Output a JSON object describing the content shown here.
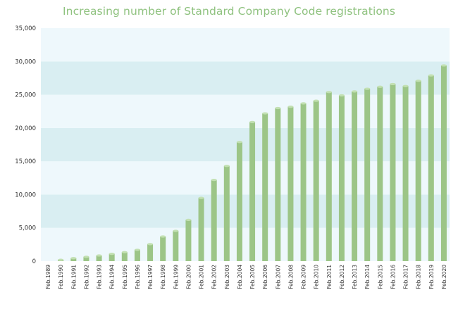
{
  "chart_data": {
    "type": "bar",
    "title": "Increasing number of Standard Company Code registrations",
    "xlabel": "",
    "ylabel": "",
    "ylim": [
      0,
      35000
    ],
    "yticks": [
      0,
      5000,
      10000,
      15000,
      20000,
      25000,
      30000,
      35000
    ],
    "ytick_labels": [
      "0",
      "5,000",
      "10,000",
      "15,000",
      "20,000",
      "25,000",
      "30,000",
      "35,000"
    ],
    "grid": "alternating horizontal bands",
    "legend": "none",
    "categories": [
      "Feb.1989",
      "Feb.1990",
      "Feb.1991",
      "Feb.1992",
      "Feb.1993",
      "Feb.1994",
      "Feb.1995",
      "Feb.1996",
      "Feb.1997",
      "Feb.1998",
      "Feb.1999",
      "Feb.2000",
      "Feb.2001",
      "Feb.2002",
      "Feb.2003",
      "Feb.2004",
      "Feb.2005",
      "Feb.2006",
      "Feb.2007",
      "Feb.2008",
      "Feb.2009",
      "Feb.2010",
      "Feb.2011",
      "Feb.2012",
      "Feb.2013",
      "Feb.2014",
      "Feb.2015",
      "Feb.2016",
      "Feb.2017",
      "Feb.2018",
      "Feb.2019",
      "Feb.2020"
    ],
    "values": [
      0,
      200,
      450,
      650,
      850,
      1100,
      1350,
      1700,
      2550,
      3700,
      4550,
      6200,
      9500,
      12200,
      14300,
      17900,
      20900,
      22200,
      23000,
      23200,
      23700,
      24100,
      25400,
      24900,
      25500,
      25900,
      26200,
      26600,
      26300,
      27100,
      27900,
      29400
    ],
    "colors": {
      "bar": "#9cc587",
      "bar_top": "#c2e0b2",
      "band_dark": "#d9eef2",
      "band_light": "#eef8fc",
      "title": "#8fc27f",
      "tick_text": "#333333"
    }
  }
}
